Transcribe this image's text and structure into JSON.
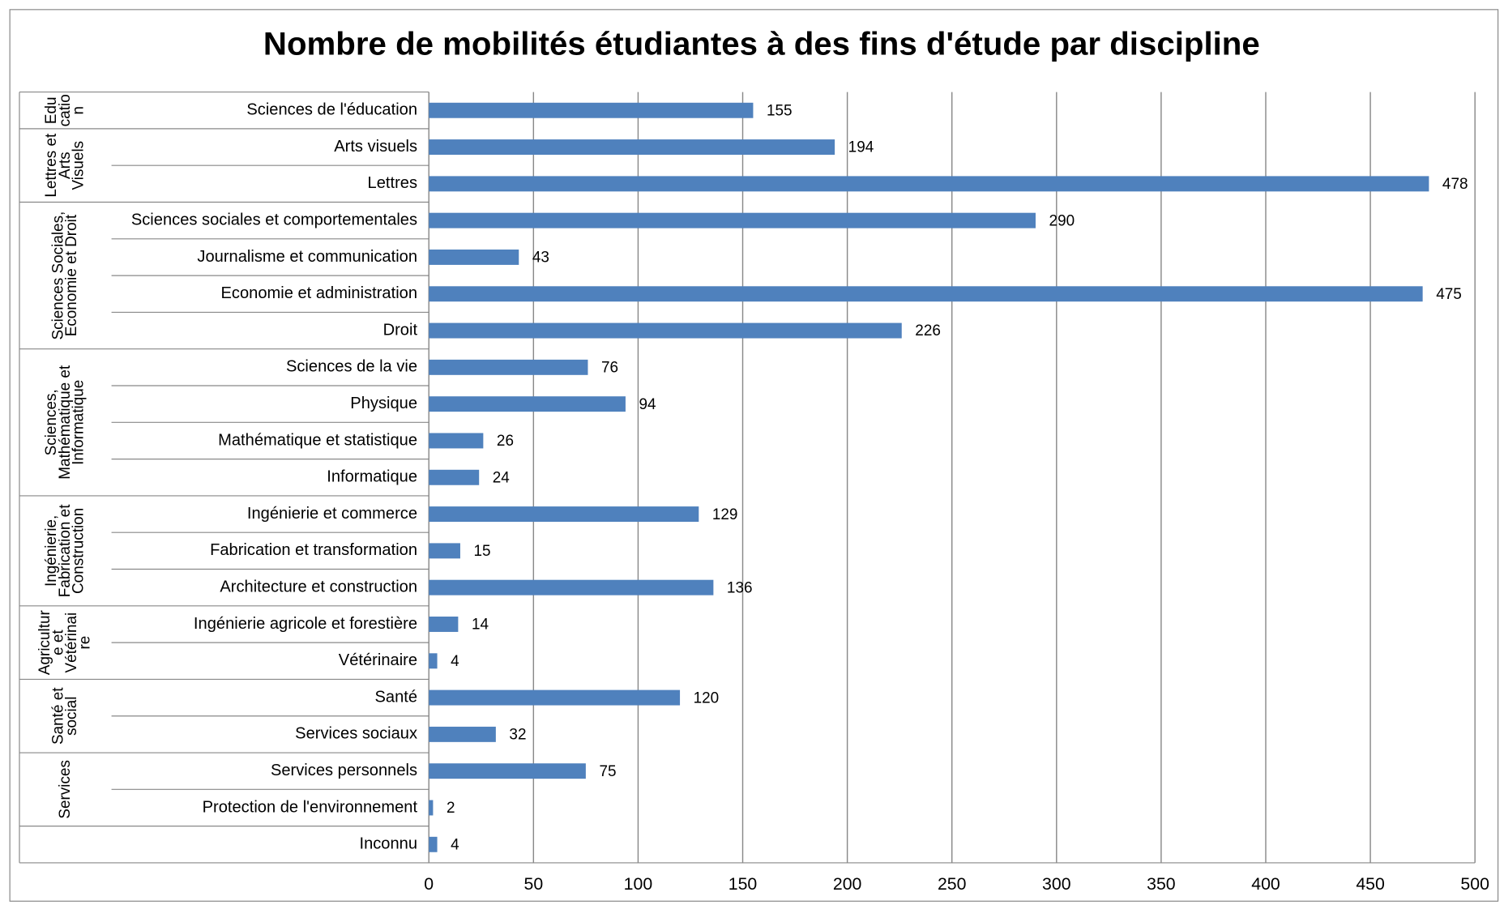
{
  "chart_data": {
    "type": "bar",
    "orientation": "horizontal",
    "title": "Nombre de mobilités étudiantes à des fins d'étude par discipline",
    "color": "#4f81bd",
    "grid": true,
    "xlim": [
      0,
      500
    ],
    "xticks": [
      0,
      50,
      100,
      150,
      200,
      250,
      300,
      350,
      400,
      450,
      500
    ],
    "groups": [
      {
        "label": [
          "Edu",
          "catio",
          "n"
        ],
        "categories": [
          "Sciences de l'éducation"
        ],
        "values": [
          155
        ]
      },
      {
        "label": [
          "Lettres et",
          "Arts",
          "Visuels"
        ],
        "categories": [
          "Arts visuels",
          "Lettres"
        ],
        "values": [
          194,
          478
        ]
      },
      {
        "label": [
          "Sciences Sociales,",
          "Economie et Droit"
        ],
        "categories": [
          "Sciences sociales et comportementales",
          "Journalisme et communication",
          "Economie et administration",
          "Droit"
        ],
        "values": [
          290,
          43,
          475,
          226
        ]
      },
      {
        "label": [
          "Sciences,",
          "Mathématique et",
          "Informatique"
        ],
        "categories": [
          "Sciences de la vie",
          "Physique",
          "Mathématique et statistique",
          "Informatique"
        ],
        "values": [
          76,
          94,
          26,
          24
        ]
      },
      {
        "label": [
          "Ingénierie,",
          "Fabrication et",
          "Construction"
        ],
        "categories": [
          "Ingénierie et commerce",
          "Fabrication et transformation",
          "Architecture et construction"
        ],
        "values": [
          129,
          15,
          136
        ]
      },
      {
        "label": [
          "Agricultur",
          "e et",
          "Vétérinai",
          "re"
        ],
        "categories": [
          "Ingénierie agricole et forestière",
          "Vétérinaire"
        ],
        "values": [
          14,
          4
        ]
      },
      {
        "label": [
          "Santé et",
          "social"
        ],
        "categories": [
          "Santé",
          "Services sociaux"
        ],
        "values": [
          120,
          32
        ]
      },
      {
        "label": [
          "Services"
        ],
        "categories": [
          "Services personnels",
          "Protection de l'environnement"
        ],
        "values": [
          75,
          2
        ]
      },
      {
        "label": [],
        "categories": [
          "Inconnu"
        ],
        "values": [
          4
        ]
      }
    ]
  }
}
